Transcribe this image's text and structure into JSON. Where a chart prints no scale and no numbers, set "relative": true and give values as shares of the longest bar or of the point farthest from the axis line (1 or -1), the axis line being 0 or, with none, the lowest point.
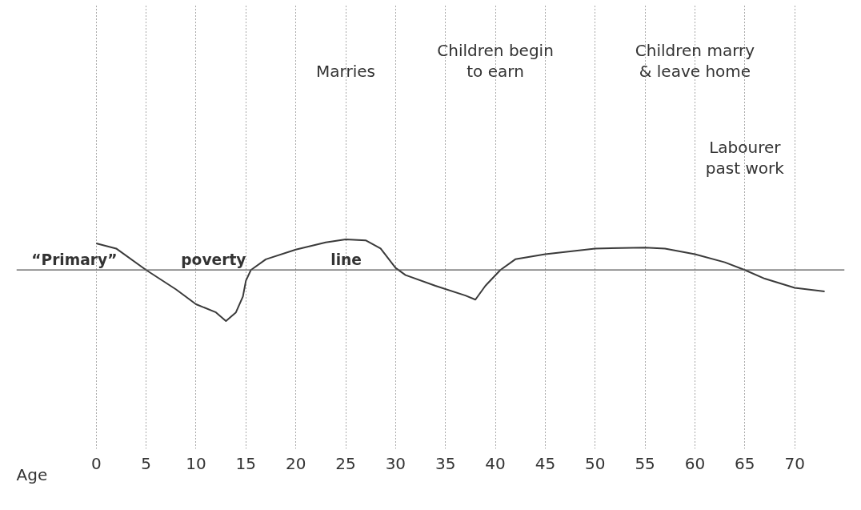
{
  "chart_data": {
    "type": "line",
    "relative": true,
    "xlabel": "Age",
    "x": [
      0,
      2,
      5,
      8,
      10,
      12,
      13,
      14,
      14.7,
      15,
      15.5,
      17,
      20,
      23,
      25,
      27,
      28.5,
      30,
      31,
      34,
      37,
      38,
      39,
      40.5,
      42,
      45,
      50,
      55,
      57,
      60,
      63,
      65,
      67,
      70,
      73
    ],
    "series": [
      {
        "color": "#3a3a3a",
        "values": [
          0.52,
          0.42,
          0,
          -0.38,
          -0.67,
          -0.83,
          -1,
          -0.83,
          -0.52,
          -0.21,
          0,
          0.21,
          0.4,
          0.54,
          0.6,
          0.58,
          0.42,
          0.04,
          -0.1,
          -0.31,
          -0.5,
          -0.58,
          -0.31,
          0,
          0.21,
          0.31,
          0.42,
          0.44,
          0.42,
          0.31,
          0.15,
          0,
          -0.17,
          -0.35,
          -0.42
        ]
      }
    ],
    "xlim": [
      -8,
      75
    ],
    "xticks": [
      0,
      5,
      10,
      15,
      20,
      25,
      30,
      35,
      40,
      45,
      50,
      55,
      60,
      65,
      70
    ],
    "grid": "x",
    "line_style": "solid",
    "ref_lines": [
      {
        "axis": "y",
        "value": 0,
        "label": "“Primary” poverty line",
        "color": "#555555"
      }
    ],
    "annotations": [
      "Marries",
      "Children begin\nto earn",
      "Children marry\n& leave home",
      "Labourer\npast work"
    ]
  }
}
